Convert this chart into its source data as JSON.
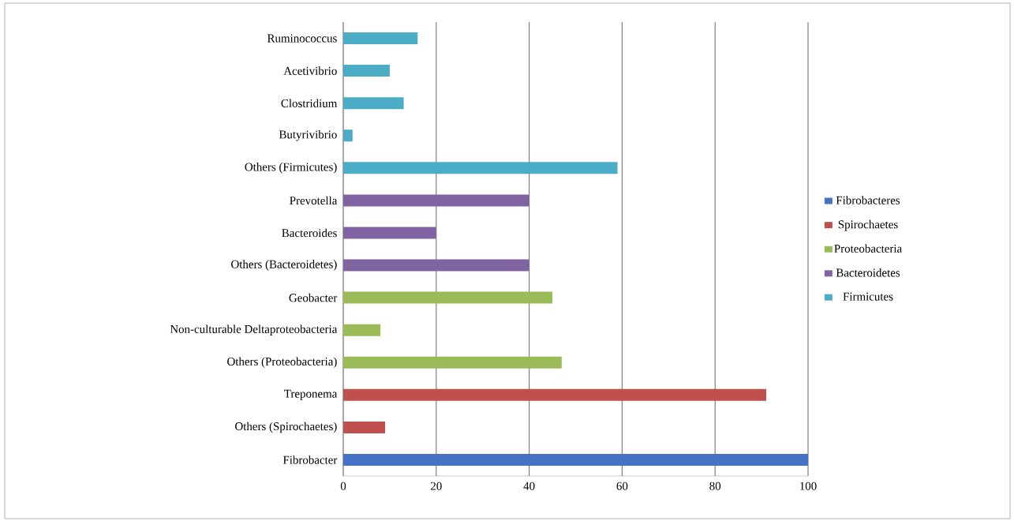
{
  "chart_data": {
    "type": "bar",
    "orientation": "horizontal",
    "categories": [
      "Ruminococcus",
      "Acetivibrio",
      "Clostridium",
      "Butyrivibrio",
      "Others (Firmicutes)",
      "Prevotella",
      "Bacteroides",
      "Others (Bacteroidetes)",
      "Geobacter",
      "Non-culturable Deltaproteobacteria",
      "Others (Proteobacteria)",
      "Treponema",
      "Others (Spirochaetes)",
      "Fibrobacter"
    ],
    "series": [
      {
        "name": "Fibrobacteres",
        "color": "#4472c4",
        "values": [
          null,
          null,
          null,
          null,
          null,
          null,
          null,
          null,
          null,
          null,
          null,
          null,
          null,
          100
        ]
      },
      {
        "name": "Spirochaetes",
        "color": "#c0504d",
        "values": [
          null,
          null,
          null,
          null,
          null,
          null,
          null,
          null,
          null,
          null,
          null,
          91,
          9,
          null
        ]
      },
      {
        "name": "Proteobacteria",
        "color": "#9bbb59",
        "values": [
          null,
          null,
          null,
          null,
          null,
          null,
          null,
          null,
          45,
          8,
          47,
          null,
          null,
          null
        ]
      },
      {
        "name": "Bacteroidetes",
        "color": "#8064a2",
        "values": [
          null,
          null,
          null,
          null,
          null,
          40,
          20,
          40,
          null,
          null,
          null,
          null,
          null,
          null
        ]
      },
      {
        "name": "Firmicutes",
        "color": "#4bacc6",
        "values": [
          16,
          10,
          13,
          2,
          59,
          null,
          null,
          null,
          null,
          null,
          null,
          null,
          null,
          null
        ]
      }
    ],
    "xlim": [
      0,
      100
    ],
    "xticks": [
      0,
      20,
      40,
      60,
      80,
      100
    ],
    "grid": "x",
    "legend": "right"
  }
}
